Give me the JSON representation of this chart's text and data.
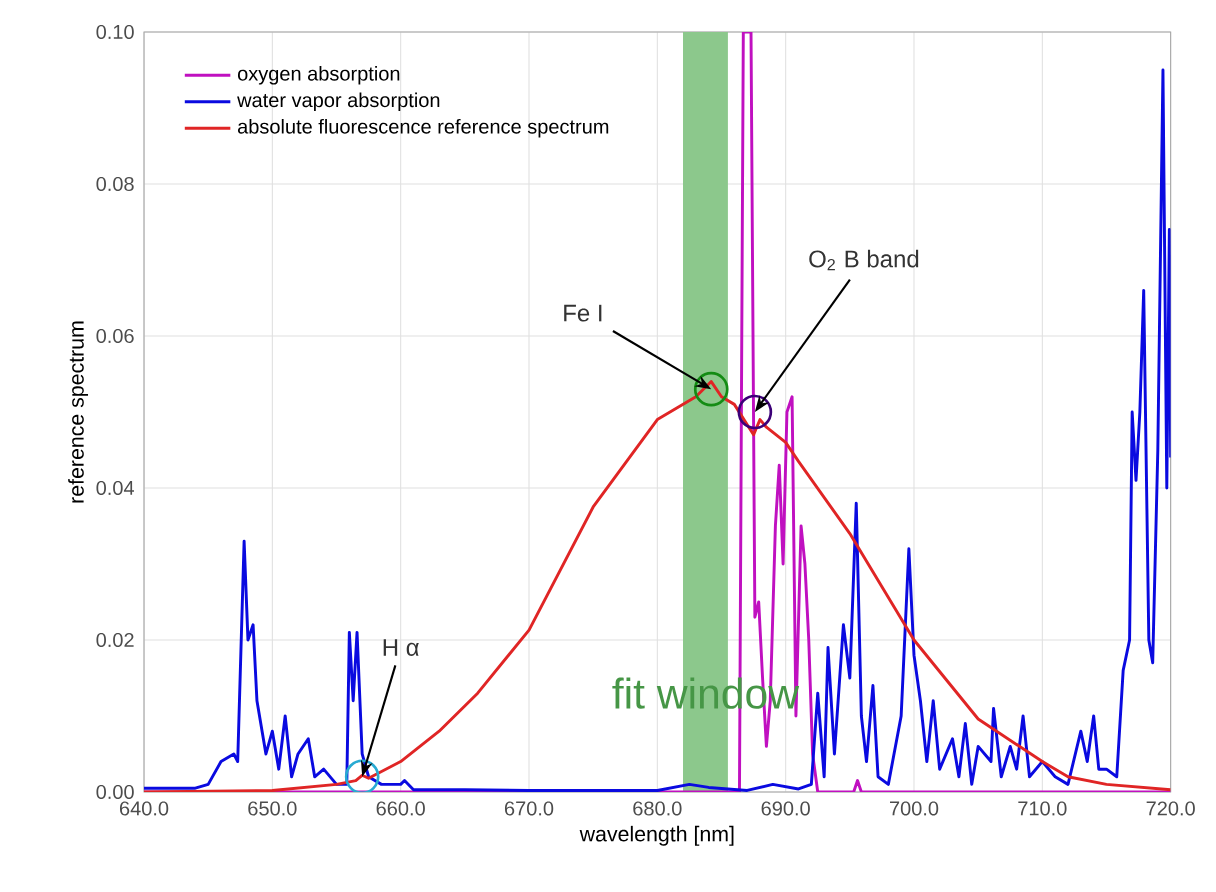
{
  "chart_data": {
    "type": "line",
    "xlabel": "wavelength [nm]",
    "ylabel": "reference spectrum",
    "xlim": [
      640,
      720
    ],
    "ylim": [
      0,
      0.1
    ],
    "xticks": [
      {
        "value": 640,
        "label": "640.0"
      },
      {
        "value": 650,
        "label": "650.0"
      },
      {
        "value": 660,
        "label": "660.0"
      },
      {
        "value": 670,
        "label": "670.0"
      },
      {
        "value": 680,
        "label": "680.0"
      },
      {
        "value": 690,
        "label": "690.0"
      },
      {
        "value": 700,
        "label": "700.0"
      },
      {
        "value": 710,
        "label": "710.0"
      },
      {
        "value": 720,
        "label": "720.0"
      }
    ],
    "yticks": [
      {
        "value": 0,
        "label": "0.00"
      },
      {
        "value": 0.02,
        "label": "0.02"
      },
      {
        "value": 0.04,
        "label": "0.04"
      },
      {
        "value": 0.06,
        "label": "0.06"
      },
      {
        "value": 0.08,
        "label": "0.08"
      },
      {
        "value": 0.1,
        "label": "0.10"
      }
    ],
    "grid": true,
    "legend": "top left",
    "bands": [
      {
        "axis": "x",
        "from": 682,
        "to": 685.5,
        "label": "fit window",
        "color": "#8cc88c"
      }
    ],
    "series": [
      {
        "name": "oxygen absorption",
        "color": "#c010c0",
        "x": [
          640,
          686.4,
          686.7,
          687.3,
          687.6,
          687.9,
          688.2,
          688.5,
          688.8,
          689.2,
          689.5,
          689.8,
          690.1,
          690.5,
          690.8,
          691.2,
          691.5,
          691.8,
          692.1,
          692.5,
          695.3,
          695.6,
          695.9,
          720
        ],
        "values": [
          0,
          0,
          0.1,
          0.1,
          0.023,
          0.025,
          0.015,
          0.006,
          0.012,
          0.035,
          0.043,
          0.03,
          0.05,
          0.052,
          0.01,
          0.035,
          0.03,
          0.02,
          0.005,
          0,
          0,
          0.0015,
          0,
          0
        ]
      },
      {
        "name": "water vapor absorption",
        "color": "#0a0ae0",
        "x": [
          640,
          644,
          645,
          646,
          647,
          647.3,
          647.8,
          648.1,
          648.5,
          648.8,
          649.5,
          650,
          650.5,
          651,
          651.5,
          652,
          652.8,
          653.3,
          654,
          655,
          655.8,
          656,
          656.3,
          656.6,
          657,
          657.5,
          658.5,
          660,
          660.3,
          661,
          665,
          670,
          680,
          682.5,
          684,
          687,
          689,
          691,
          692,
          692.5,
          693,
          693.3,
          693.8,
          694.5,
          695,
          695.5,
          695.9,
          696.3,
          696.8,
          697.2,
          698,
          699,
          699.6,
          700,
          700.5,
          701,
          701.5,
          702,
          703,
          703.5,
          704,
          704.5,
          705,
          706,
          706.2,
          706.8,
          707.5,
          708,
          708.5,
          709,
          710,
          711,
          712,
          713,
          713.5,
          714,
          714.4,
          715,
          715.8,
          716.3,
          716.8,
          717,
          717.3,
          717.6,
          717.9,
          718.3,
          718.6,
          719,
          719.4,
          719.7,
          719.9,
          720
        ],
        "values": [
          0.0005,
          0.0005,
          0.001,
          0.004,
          0.005,
          0.004,
          0.033,
          0.02,
          0.022,
          0.012,
          0.005,
          0.008,
          0.003,
          0.01,
          0.002,
          0.005,
          0.007,
          0.002,
          0.003,
          0.001,
          0.001,
          0.021,
          0.012,
          0.021,
          0.005,
          0.002,
          0.001,
          0.001,
          0.0015,
          0.0003,
          0.0003,
          0.0002,
          0.0002,
          0.001,
          0.0006,
          0.0002,
          0.001,
          0.0004,
          0.001,
          0.013,
          0.002,
          0.019,
          0.005,
          0.022,
          0.015,
          0.038,
          0.01,
          0.004,
          0.014,
          0.002,
          0.001,
          0.01,
          0.032,
          0.018,
          0.012,
          0.004,
          0.012,
          0.003,
          0.007,
          0.002,
          0.009,
          0.001,
          0.006,
          0.004,
          0.011,
          0.002,
          0.006,
          0.003,
          0.01,
          0.002,
          0.004,
          0.002,
          0.001,
          0.008,
          0.004,
          0.01,
          0.003,
          0.003,
          0.002,
          0.016,
          0.02,
          0.05,
          0.041,
          0.05,
          0.066,
          0.02,
          0.017,
          0.045,
          0.095,
          0.04,
          0.074,
          0.044
        ]
      },
      {
        "name": "absolute fluorescence reference spectrum",
        "color": "#e02525",
        "x": [
          640,
          650,
          655,
          656.5,
          657,
          657.5,
          660,
          663,
          666,
          670,
          675,
          680,
          683,
          684.2,
          685,
          686,
          687.5,
          688,
          688.5,
          690,
          691,
          695,
          700,
          705,
          710,
          712,
          715,
          720
        ],
        "values": [
          0,
          0.0002,
          0.001,
          0.0015,
          0.0022,
          0.0018,
          0.004,
          0.008,
          0.013,
          0.0213,
          0.0375,
          0.049,
          0.052,
          0.054,
          0.052,
          0.051,
          0.047,
          0.049,
          0.048,
          0.046,
          0.0435,
          0.034,
          0.02,
          0.0096,
          0.004,
          0.002,
          0.001,
          0.0003
        ]
      }
    ],
    "annotations": [
      {
        "text": "Fe I",
        "x": 684.2,
        "y": 0.053
      },
      {
        "text": "O$_{2}$ B band",
        "x": 687.6,
        "y": 0.05
      },
      {
        "text": "H α",
        "x": 657,
        "y": 0.002
      }
    ]
  }
}
